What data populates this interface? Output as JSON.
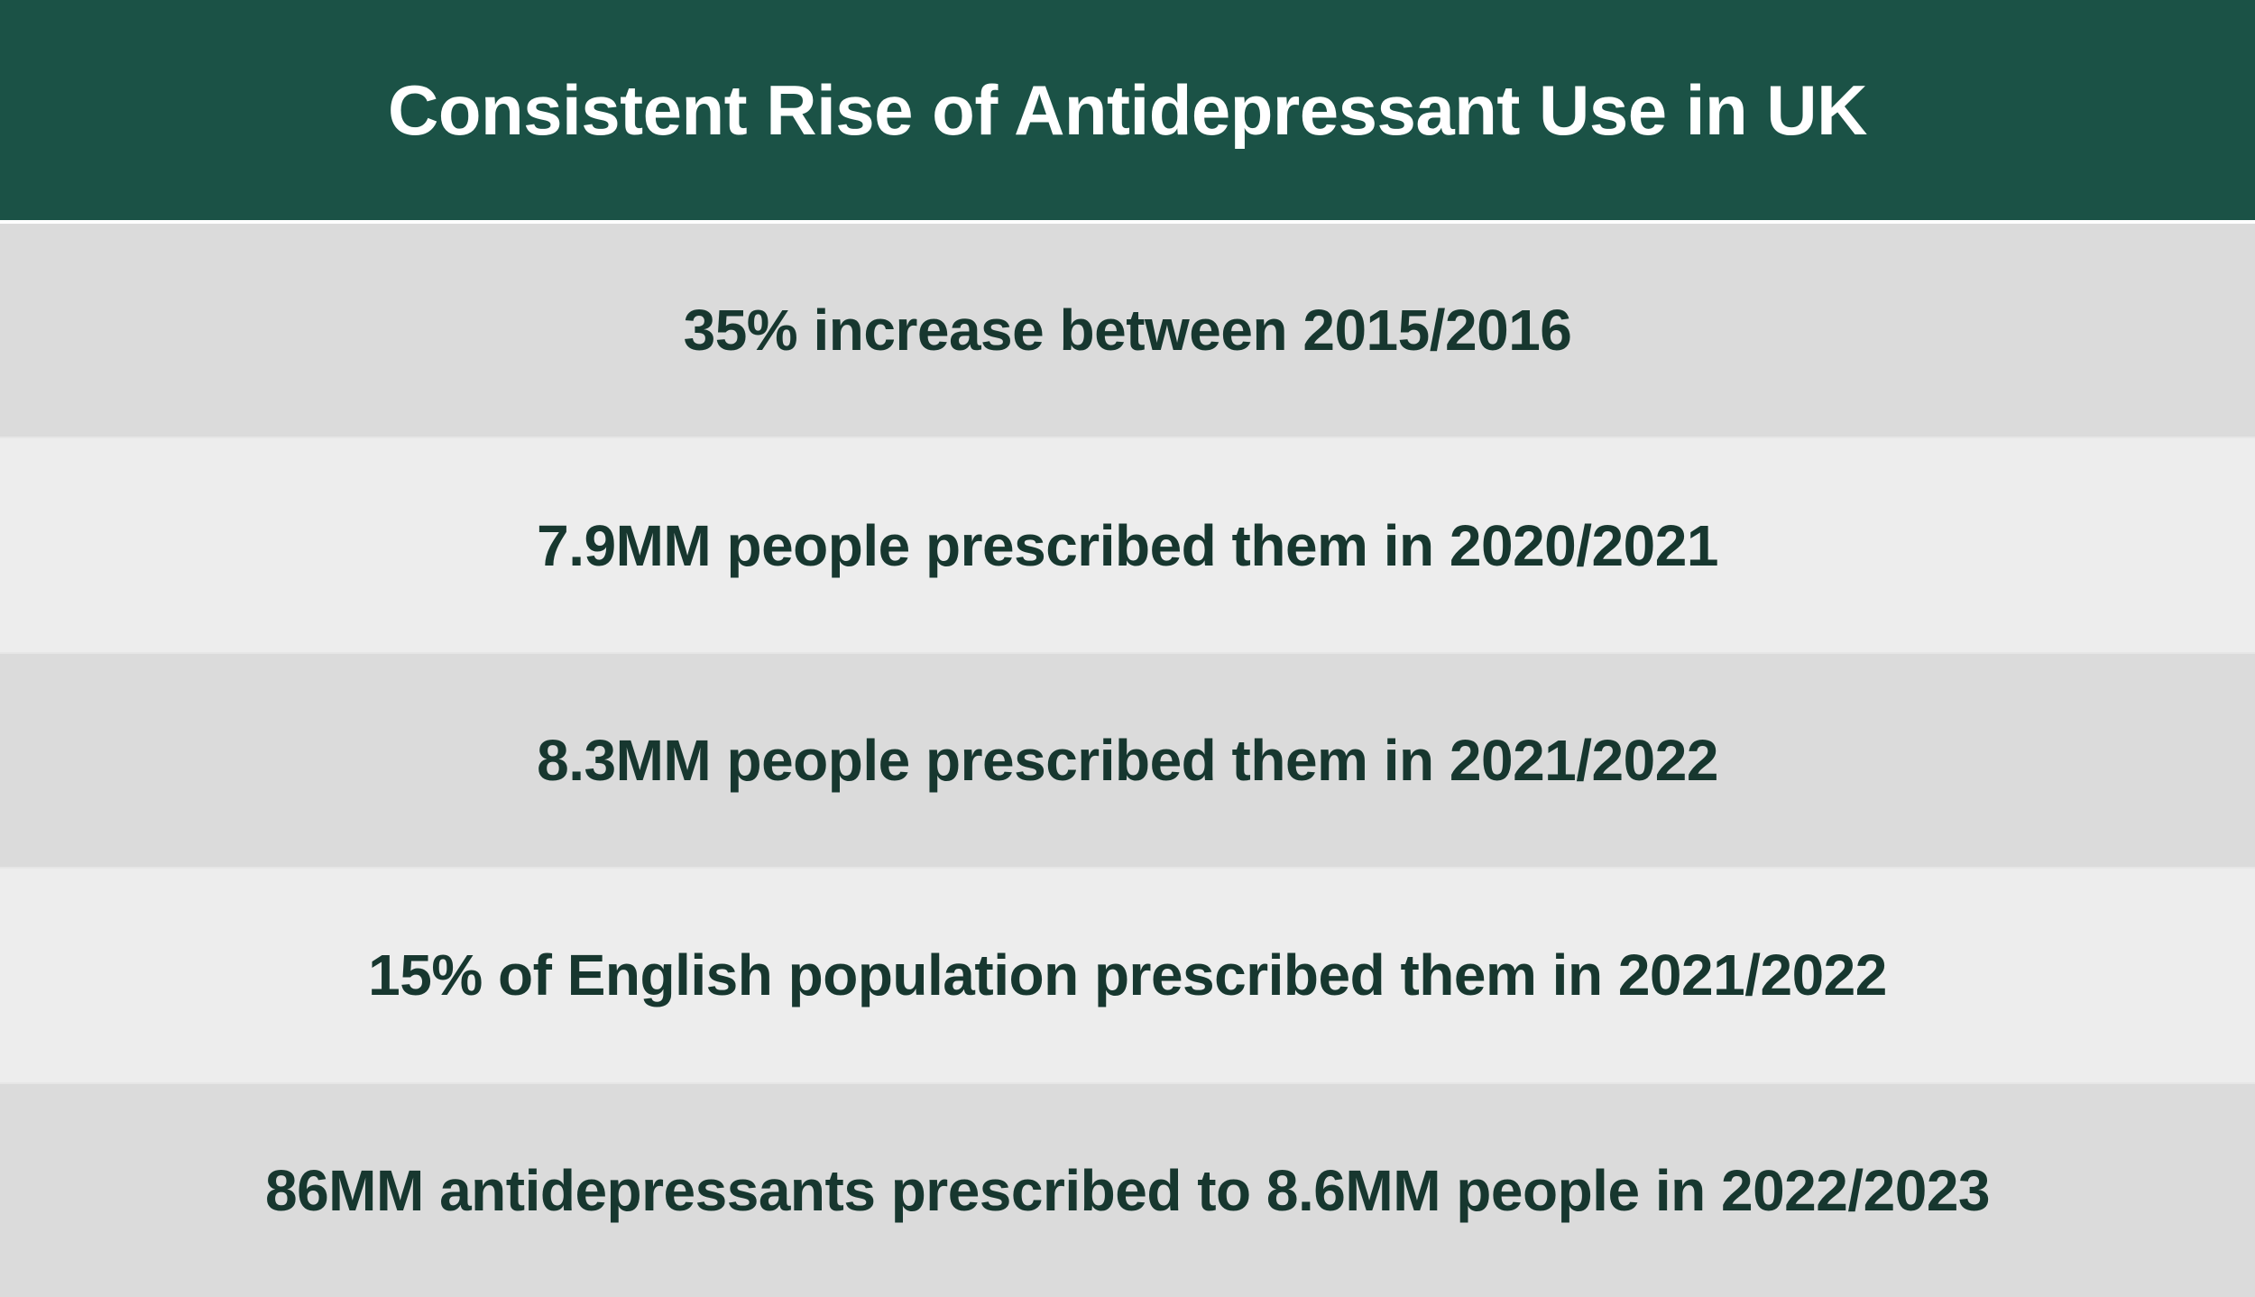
{
  "title": "Consistent Rise of Antidepressant Use in UK",
  "colors": {
    "header_bg": "#1b5246",
    "header_text": "#ffffff",
    "row_dark": "#dbdbdb",
    "row_light": "#ededed",
    "row_text": "#17372f"
  },
  "rows": [
    {
      "text": "35% increase between 2015/2016"
    },
    {
      "text": "7.9MM people prescribed them in 2020/2021"
    },
    {
      "text": "8.3MM people prescribed them in 2021/2022"
    },
    {
      "text": "15% of English population prescribed them in 2021/2022"
    },
    {
      "text": "86MM antidepressants prescribed to 8.6MM people in 2022/2023"
    }
  ]
}
